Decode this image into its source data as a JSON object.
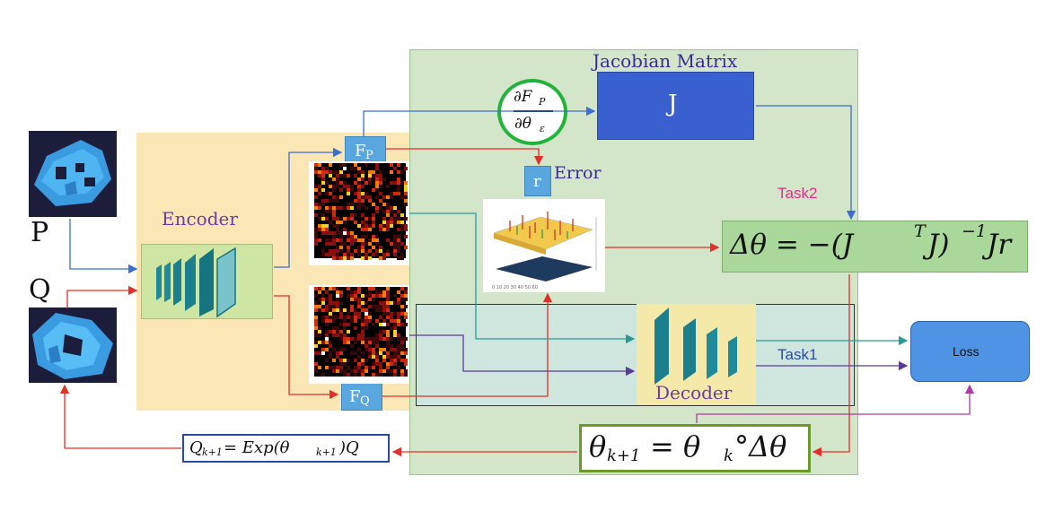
{
  "inputs": {
    "p_label": "P",
    "q_label": "Q"
  },
  "encoder": {
    "label": "Encoder"
  },
  "features": {
    "fp_main": "F",
    "fp_sub": "P",
    "fq_main": "F",
    "fq_sub": "Q"
  },
  "jacobian": {
    "title": "Jacobian Matrix",
    "symbol": "J"
  },
  "derivative": {
    "numerator": "∂F",
    "numerator_sub": "P",
    "denominator": "∂θ",
    "denominator_sub": "ε"
  },
  "error": {
    "box_label": "r",
    "label": "Error"
  },
  "tasks": {
    "task1": "Task1",
    "task2": "Task2"
  },
  "decoder": {
    "label": "Decoder"
  },
  "loss": {
    "label": "Loss"
  },
  "formulas": {
    "delta_theta": "Δθ = −(J",
    "delta_sup": "T",
    "delta_mid": "J)",
    "delta_sup2": "−1",
    "delta_end": "Jr",
    "theta_update_a": "θ",
    "theta_update_sub_a": "k+1",
    "theta_update_b": " = θ",
    "theta_update_sub_b": "k",
    "theta_update_c": "°Δθ",
    "q_update_a": "Q",
    "q_update_sub_a": "k+1",
    "q_update_b": " = Exp(θ",
    "q_update_sub_b": "k+1",
    "q_update_c": ")Q"
  },
  "colors": {
    "arrow_blue": "#3a6ecf",
    "arrow_red": "#e0302a",
    "arrow_teal": "#2a9a9a",
    "arrow_purple": "#5a3a9a",
    "task_pink": "#e0308a",
    "task1_blue": "#2a4aa5",
    "ring_green": "#22b33a"
  }
}
